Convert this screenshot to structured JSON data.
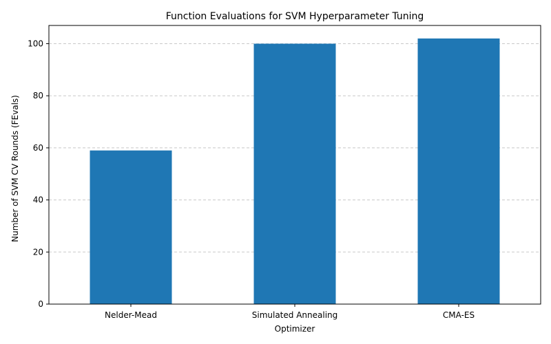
{
  "chart_data": {
    "type": "bar",
    "title": "Function Evaluations for SVM Hyperparameter Tuning",
    "xlabel": "Optimizer",
    "ylabel": "Number of SVM CV Rounds (FEvals)",
    "categories": [
      "Nelder-Mead",
      "Simulated Annealing",
      "CMA-ES"
    ],
    "values": [
      59,
      100,
      102
    ],
    "ylim": [
      0,
      107
    ],
    "yticks": [
      0,
      20,
      40,
      60,
      80,
      100
    ],
    "grid": "y-dashed",
    "bar_color": "#1f77b4"
  }
}
